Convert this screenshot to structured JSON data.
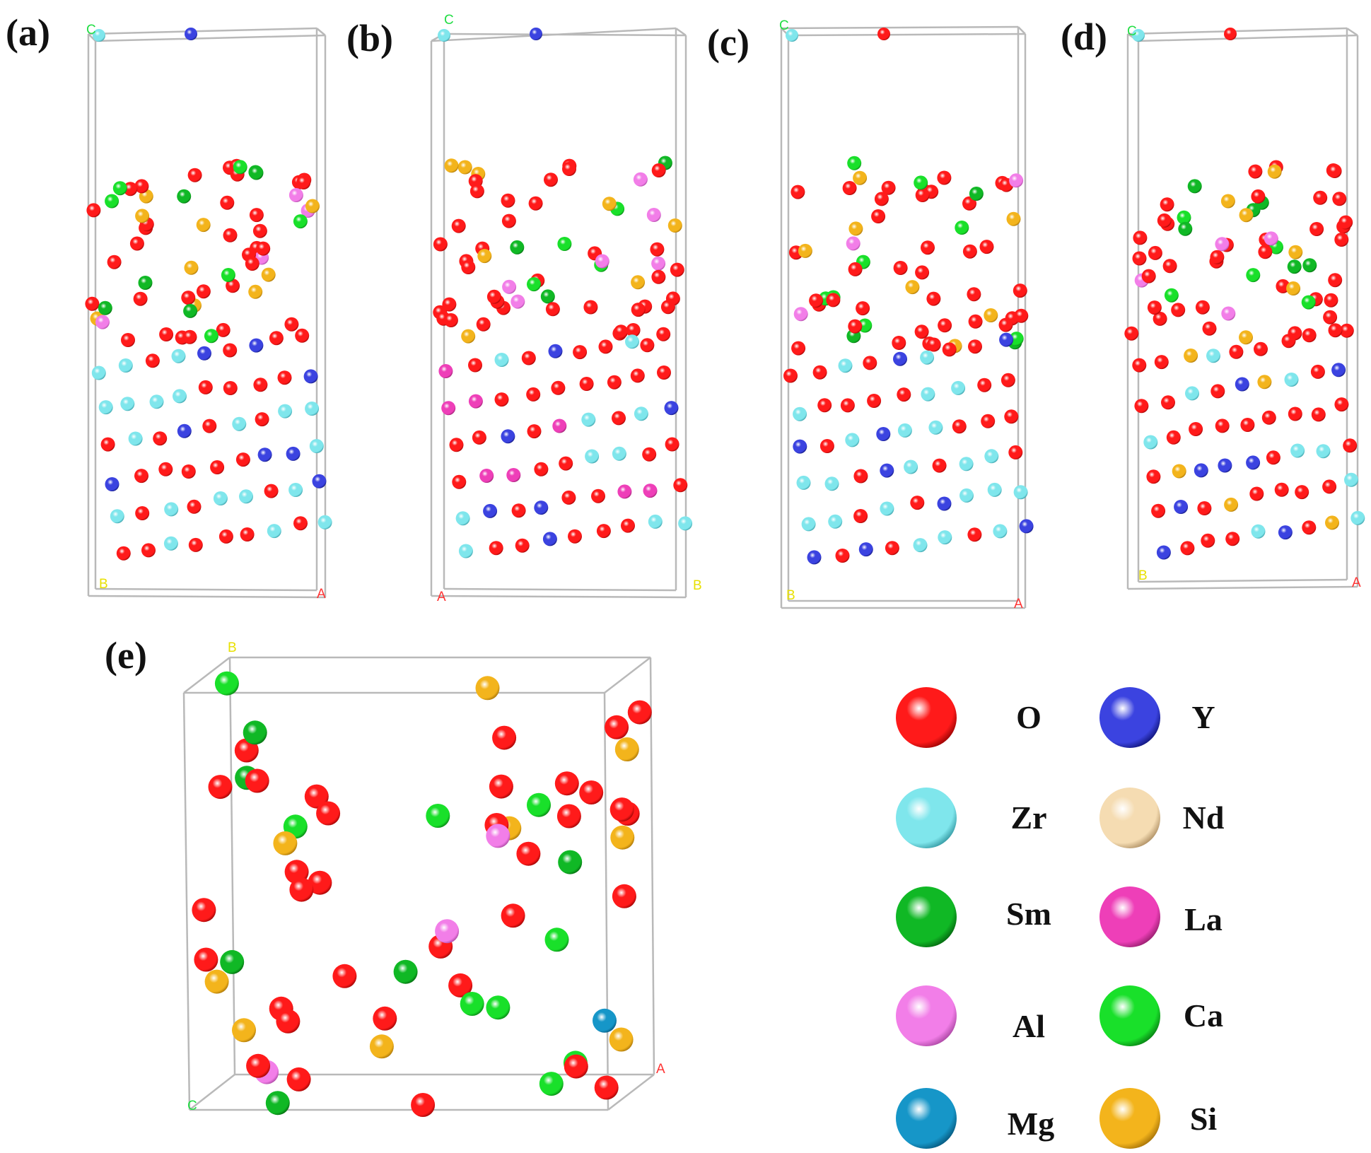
{
  "figure": {
    "panels": [
      {
        "id": "a",
        "label": "(a)",
        "axes": {
          "top": "C",
          "corner": "B",
          "side": "A"
        }
      },
      {
        "id": "b",
        "label": "(b)",
        "axes": {
          "top": "C",
          "corner": "A",
          "side": "B"
        }
      },
      {
        "id": "c",
        "label": "(c)",
        "axes": {
          "top": "C",
          "corner": "B",
          "side": "A"
        }
      },
      {
        "id": "d",
        "label": "(d)",
        "axes": {
          "top": "C",
          "corner": "B",
          "side": "A"
        }
      },
      {
        "id": "e",
        "label": "(e)",
        "axes": {
          "top": "B",
          "corner": "C",
          "side": "A"
        }
      }
    ],
    "axis_colors": {
      "A": "#ff3333",
      "B": "#e8e000",
      "C": "#22dd44"
    }
  },
  "legend": {
    "items": [
      {
        "element": "O",
        "color": "#ff1a1a",
        "shade": "#8a0000"
      },
      {
        "element": "Y",
        "color": "#3b43e0",
        "shade": "#0a0e6a"
      },
      {
        "element": "Zr",
        "color": "#7fe6ec",
        "shade": "#2a8e98"
      },
      {
        "element": "Nd",
        "color": "#f5dcb2",
        "shade": "#a48458"
      },
      {
        "element": "Sm",
        "color": "#10b825",
        "shade": "#035a0c"
      },
      {
        "element": "La",
        "color": "#ee3fb8",
        "shade": "#881a62"
      },
      {
        "element": "Al",
        "color": "#f27ee8",
        "shade": "#a03e98"
      },
      {
        "element": "Ca",
        "color": "#19e02a",
        "shade": "#067010"
      },
      {
        "element": "Mg",
        "color": "#1696c8",
        "shade": "#044e72"
      },
      {
        "element": "Si",
        "color": "#f3b41c",
        "shade": "#9a6804"
      }
    ]
  }
}
